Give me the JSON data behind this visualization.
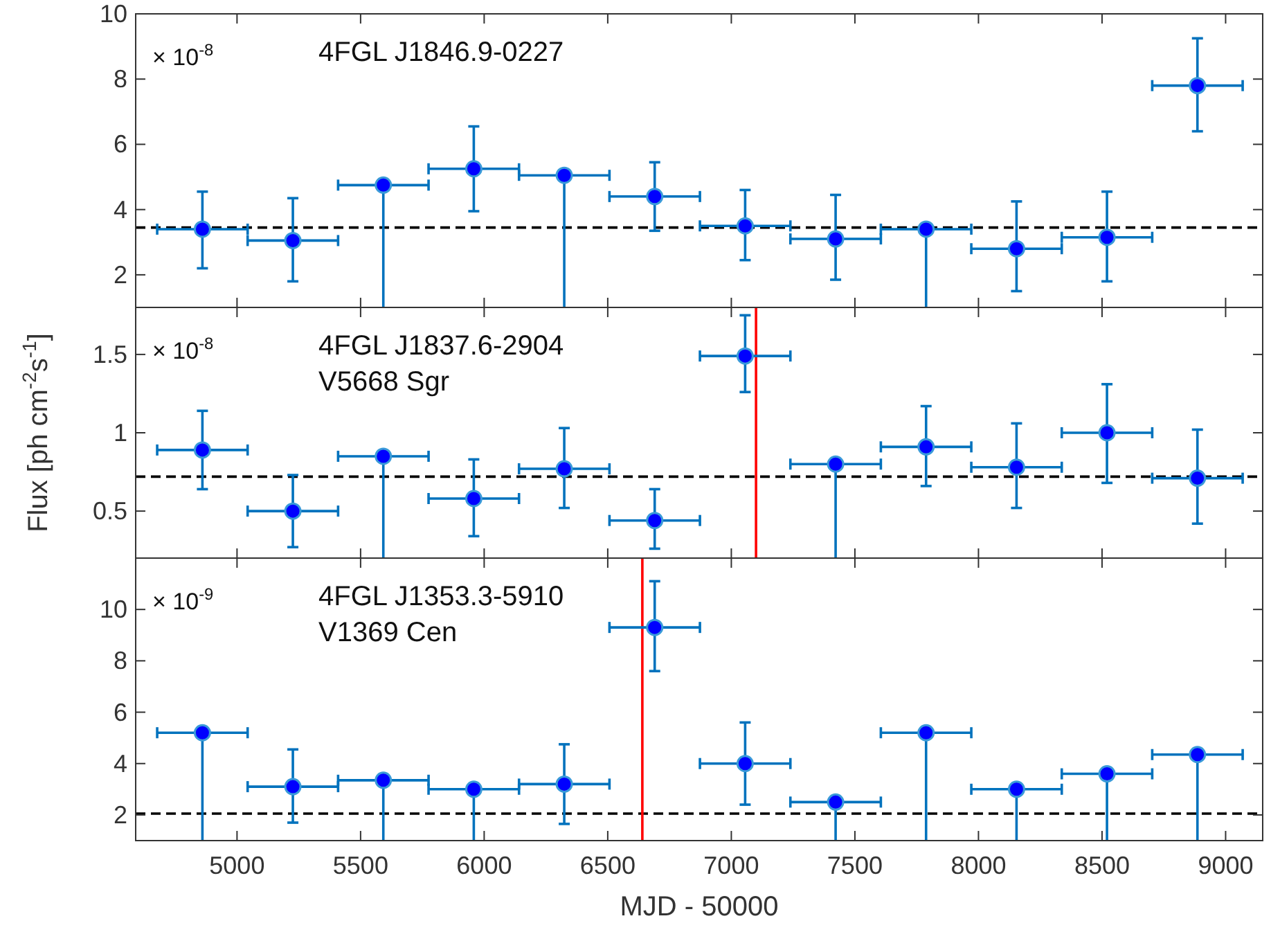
{
  "chart_data": [
    {
      "type": "scatter",
      "annotations": [
        "× 10$^{-8}$",
        "4FGL J1846.9-0227"
      ],
      "x": [
        4860,
        5226,
        5592,
        5958,
        6324,
        6690,
        7056,
        7422,
        7788,
        8154,
        8520,
        8886
      ],
      "xlim": [
        4590,
        9150
      ],
      "xticks": [
        5000,
        5500,
        6000,
        6500,
        7000,
        7500,
        8000,
        8500,
        9000
      ],
      "ylim": [
        1,
        10
      ],
      "yticks": [
        2,
        4,
        6,
        8,
        10
      ],
      "tick_labels": "y",
      "marker": "circle",
      "series": [
        {
          "color": "#0000ff",
          "values": [
            3.4,
            3.05,
            4.75,
            5.25,
            5.05,
            4.4,
            3.5,
            3.1,
            3.4,
            2.8,
            3.15,
            7.8
          ],
          "xerrors": [
            183,
            183,
            183,
            183,
            183,
            183,
            183,
            183,
            183,
            183,
            183,
            183
          ],
          "errors": [
            [
              2.2,
              4.55
            ],
            [
              1.8,
              4.35
            ],
            [
              1,
              4.75
            ],
            [
              3.95,
              6.55
            ],
            [
              1,
              5.05
            ],
            [
              3.35,
              5.45
            ],
            [
              2.45,
              4.6
            ],
            [
              1.85,
              4.45
            ],
            [
              1,
              3.4
            ],
            [
              1.5,
              4.25
            ],
            [
              1.8,
              4.55
            ],
            [
              6.4,
              9.25
            ]
          ]
        }
      ],
      "ref_lines": [
        {
          "axis": "y",
          "value": 3.45,
          "color": "#000000",
          "line_style": "dashed"
        }
      ]
    },
    {
      "type": "scatter",
      "ylabel": "Flux [ph cm$^{-2}$s$^{-1}$]",
      "annotations": [
        "× 10$^{-8}$",
        "4FGL J1837.6-2904",
        "V5668 Sgr"
      ],
      "x": [
        4860,
        5226,
        5592,
        5958,
        6324,
        6690,
        7056,
        7422,
        7788,
        8154,
        8520,
        8886
      ],
      "xlim": [
        4590,
        9150
      ],
      "xticks": [
        5000,
        5500,
        6000,
        6500,
        7000,
        7500,
        8000,
        8500,
        9000
      ],
      "ylim": [
        0.2,
        1.8
      ],
      "yticks": [
        0.5,
        1,
        1.5
      ],
      "tick_labels": "y",
      "marker": "circle",
      "series": [
        {
          "color": "#0000ff",
          "values": [
            0.89,
            0.5,
            0.85,
            0.58,
            0.77,
            0.44,
            1.49,
            0.8,
            0.91,
            0.78,
            1.0,
            0.71
          ],
          "xerrors": [
            183,
            183,
            183,
            183,
            183,
            183,
            183,
            183,
            183,
            183,
            183,
            183
          ],
          "errors": [
            [
              0.64,
              1.14
            ],
            [
              0.27,
              0.73
            ],
            [
              0.2,
              0.85
            ],
            [
              0.34,
              0.83
            ],
            [
              0.52,
              1.03
            ],
            [
              0.26,
              0.64
            ],
            [
              1.26,
              1.75
            ],
            [
              0.2,
              0.8
            ],
            [
              0.66,
              1.17
            ],
            [
              0.52,
              1.06
            ],
            [
              0.68,
              1.31
            ],
            [
              0.42,
              1.02
            ]
          ]
        }
      ],
      "ref_lines": [
        {
          "axis": "y",
          "value": 0.72,
          "color": "#000000",
          "line_style": "dashed"
        },
        {
          "axis": "x",
          "value": 7100,
          "color": "#ff0000",
          "line_style": "solid"
        }
      ]
    },
    {
      "type": "scatter",
      "xlabel": "MJD - 50000",
      "annotations": [
        "× 10$^{-9}$",
        "4FGL J1353.3-5910",
        "V1369 Cen"
      ],
      "x": [
        4860,
        5226,
        5592,
        5958,
        6324,
        6690,
        7056,
        7422,
        7788,
        8154,
        8520,
        8886
      ],
      "xlim": [
        4590,
        9150
      ],
      "xticks": [
        5000,
        5500,
        6000,
        6500,
        7000,
        7500,
        8000,
        8500,
        9000
      ],
      "ylim": [
        1,
        12
      ],
      "yticks": [
        2,
        4,
        6,
        8,
        10
      ],
      "marker": "circle",
      "series": [
        {
          "color": "#0000ff",
          "values": [
            5.2,
            3.1,
            3.35,
            3.0,
            3.2,
            9.3,
            4.0,
            2.5,
            5.2,
            3.0,
            3.6,
            4.35
          ],
          "xerrors": [
            183,
            183,
            183,
            183,
            183,
            183,
            183,
            183,
            183,
            183,
            183,
            183
          ],
          "errors": [
            [
              1,
              5.2
            ],
            [
              1.7,
              4.55
            ],
            [
              1,
              3.35
            ],
            [
              1,
              3.0
            ],
            [
              1.65,
              4.75
            ],
            [
              7.6,
              11.1
            ],
            [
              2.4,
              5.6
            ],
            [
              1,
              2.5
            ],
            [
              1,
              5.2
            ],
            [
              1,
              3.0
            ],
            [
              1,
              3.6
            ],
            [
              1,
              4.35
            ]
          ]
        }
      ],
      "ref_lines": [
        {
          "axis": "y",
          "value": 2.05,
          "color": "#000000",
          "line_style": "dashed"
        },
        {
          "axis": "x",
          "value": 6640,
          "color": "#ff0000",
          "line_style": "solid"
        }
      ]
    }
  ]
}
